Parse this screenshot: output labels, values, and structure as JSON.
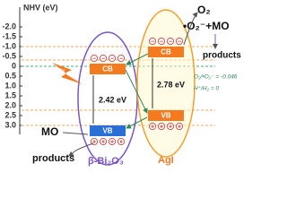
{
  "axis": {
    "title": "NHV (eV)",
    "ticks": [
      "-2.0",
      "-1.5",
      "-1.0",
      "-0.5",
      "0",
      "0.5",
      "1.0",
      "1.5",
      "2.0",
      "2.5",
      "3.0"
    ]
  },
  "semiconductors": [
    {
      "name": "β-Bi₂O₃",
      "cb": "CB",
      "vb": "VB",
      "gap": "2.42 eV"
    },
    {
      "name": "AgI",
      "cb": "CB",
      "vb": "VB",
      "gap": "2.78 eV"
    }
  ],
  "light": "hν",
  "reaction_top": {
    "reactant": "O₂",
    "product": "•O₂⁻+MO",
    "result": "products"
  },
  "reaction_bottom": {
    "reactant": "MO",
    "result": "products"
  },
  "potentials": [
    "O₂/•O₂⁻ = -0.046",
    "H⁺/H₂ = 0"
  ],
  "charges": {
    "electron": "−",
    "hole": "+"
  }
}
